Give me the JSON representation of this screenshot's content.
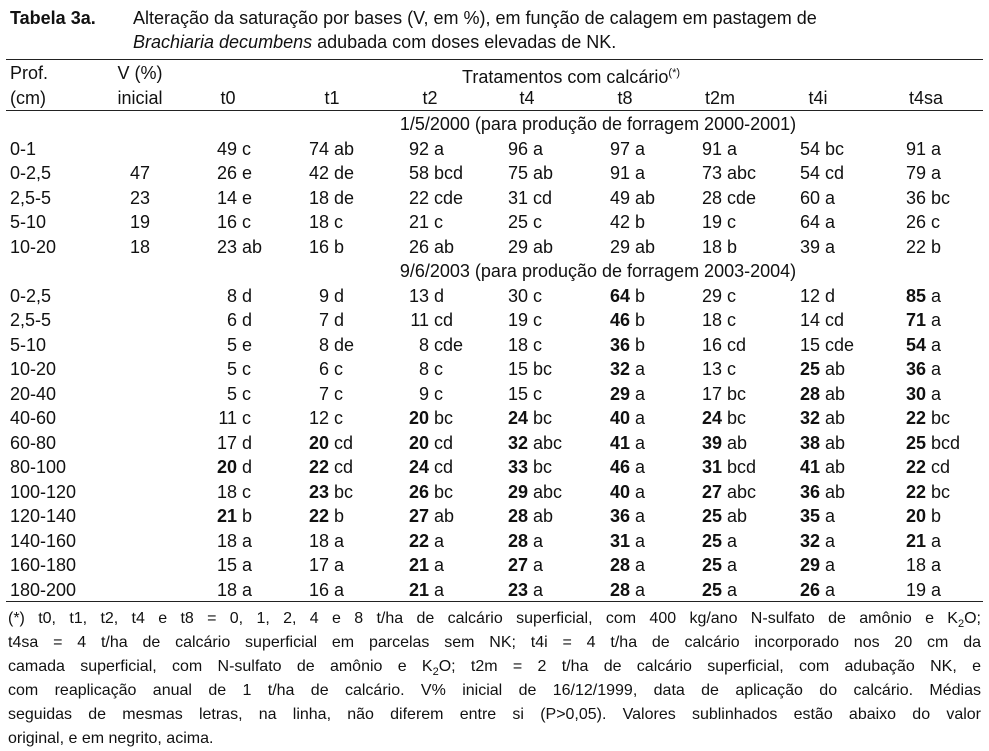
{
  "title": {
    "label": "Tabela 3a.",
    "line1": "Alteração da saturação por bases (V, em %), em função de calagem em pastagem de",
    "italic": "Brachiaria decumbens",
    "line2": " adubada com doses elevadas de NK."
  },
  "header": {
    "prof": [
      "Prof.",
      "(cm)"
    ],
    "v": [
      "V (%)",
      "inicial"
    ],
    "group": "Tratamentos com calcário",
    "group_note": "(*)",
    "treatments": [
      "t0",
      "t1",
      "t2",
      "t4",
      "t8",
      "t2m",
      "t4i",
      "t4sa"
    ]
  },
  "sections": [
    {
      "title": "1/5/2000 (para produção de forragem 2000-2001)",
      "rows": [
        {
          "prof": "0-1",
          "cells": [
            {
              "n": "49",
              "l": "c"
            },
            {
              "n": "74",
              "l": "ab"
            },
            {
              "n": "92",
              "l": "a"
            },
            {
              "n": "96",
              "l": "a"
            },
            {
              "n": "97",
              "l": "a"
            },
            {
              "n": "91",
              "l": "a"
            },
            {
              "n": "54",
              "l": "bc"
            },
            {
              "n": "91",
              "l": "a"
            }
          ]
        },
        {
          "prof": "0-2,5",
          "v": "47",
          "cells": [
            {
              "n": "26",
              "l": "e"
            },
            {
              "n": "42",
              "l": "de"
            },
            {
              "n": "58",
              "l": "bcd"
            },
            {
              "n": "75",
              "l": "ab"
            },
            {
              "n": "91",
              "l": "a"
            },
            {
              "n": "73",
              "l": "abc"
            },
            {
              "n": "54",
              "l": "cd"
            },
            {
              "n": "79",
              "l": "a"
            }
          ]
        },
        {
          "prof": "2,5-5",
          "v": "23",
          "cells": [
            {
              "n": "14",
              "l": "e"
            },
            {
              "n": "18",
              "l": "de"
            },
            {
              "n": "22",
              "l": "cde"
            },
            {
              "n": "31",
              "l": "cd"
            },
            {
              "n": "49",
              "l": "ab"
            },
            {
              "n": "28",
              "l": "cde"
            },
            {
              "n": "60",
              "l": "a"
            },
            {
              "n": "36",
              "l": "bc"
            }
          ]
        },
        {
          "prof": "5-10",
          "v": "19",
          "cells": [
            {
              "n": "16",
              "l": "c"
            },
            {
              "n": "18",
              "l": "c"
            },
            {
              "n": "21",
              "l": "c"
            },
            {
              "n": "25",
              "l": "c"
            },
            {
              "n": "42",
              "l": "b"
            },
            {
              "n": "19",
              "l": "c"
            },
            {
              "n": "64",
              "l": "a"
            },
            {
              "n": "26",
              "l": "c"
            }
          ]
        },
        {
          "prof": "10-20",
          "v": "18",
          "cells": [
            {
              "n": "23",
              "l": "ab"
            },
            {
              "n": "16",
              "l": "b"
            },
            {
              "n": "26",
              "l": "ab"
            },
            {
              "n": "29",
              "l": "ab"
            },
            {
              "n": "29",
              "l": "ab"
            },
            {
              "n": "18",
              "l": "b"
            },
            {
              "n": "39",
              "l": "a"
            },
            {
              "n": "22",
              "l": "b"
            }
          ]
        }
      ]
    },
    {
      "title": "9/6/2003 (para produção de forragem 2003-2004)",
      "rows": [
        {
          "prof": "0-2,5",
          "cells": [
            {
              "n": "8",
              "l": "d"
            },
            {
              "n": "9",
              "l": "d"
            },
            {
              "n": "13",
              "l": "d"
            },
            {
              "n": "30",
              "l": "c"
            },
            {
              "n": "64",
              "l": "b",
              "bold": true
            },
            {
              "n": "29",
              "l": "c"
            },
            {
              "n": "12",
              "l": "d"
            },
            {
              "n": "85",
              "l": "a",
              "bold": true
            }
          ]
        },
        {
          "prof": "2,5-5",
          "cells": [
            {
              "n": "6",
              "l": "d"
            },
            {
              "n": "7",
              "l": "d"
            },
            {
              "n": "11",
              "l": "cd"
            },
            {
              "n": "19",
              "l": "c"
            },
            {
              "n": "46",
              "l": "b",
              "bold": true
            },
            {
              "n": "18",
              "l": "c"
            },
            {
              "n": "14",
              "l": "cd"
            },
            {
              "n": "71",
              "l": "a",
              "bold": true
            }
          ]
        },
        {
          "prof": "5-10",
          "cells": [
            {
              "n": "5",
              "l": "e"
            },
            {
              "n": "8",
              "l": "de"
            },
            {
              "n": "8",
              "l": "cde"
            },
            {
              "n": "18",
              "l": "c"
            },
            {
              "n": "36",
              "l": "b",
              "bold": true
            },
            {
              "n": "16",
              "l": "cd"
            },
            {
              "n": "15",
              "l": "cde"
            },
            {
              "n": "54",
              "l": "a",
              "bold": true
            }
          ]
        },
        {
          "prof": "10-20",
          "cells": [
            {
              "n": "5",
              "l": "c"
            },
            {
              "n": "6",
              "l": "c"
            },
            {
              "n": "8",
              "l": "c"
            },
            {
              "n": "15",
              "l": "bc"
            },
            {
              "n": "32",
              "l": "a",
              "bold": true
            },
            {
              "n": "13",
              "l": "c"
            },
            {
              "n": "25",
              "l": "ab",
              "bold": true
            },
            {
              "n": "36",
              "l": "a",
              "bold": true
            }
          ]
        },
        {
          "prof": "20-40",
          "cells": [
            {
              "n": "5",
              "l": "c"
            },
            {
              "n": "7",
              "l": "c"
            },
            {
              "n": "9",
              "l": "c"
            },
            {
              "n": "15",
              "l": "c"
            },
            {
              "n": "29",
              "l": "a",
              "bold": true
            },
            {
              "n": "17",
              "l": "bc"
            },
            {
              "n": "28",
              "l": "ab",
              "bold": true
            },
            {
              "n": "30",
              "l": "a",
              "bold": true
            }
          ]
        },
        {
          "prof": "40-60",
          "cells": [
            {
              "n": "11",
              "l": "c"
            },
            {
              "n": "12",
              "l": "c"
            },
            {
              "n": "20",
              "l": "bc",
              "bold": true
            },
            {
              "n": "24",
              "l": "bc",
              "bold": true
            },
            {
              "n": "40",
              "l": "a",
              "bold": true
            },
            {
              "n": "24",
              "l": "bc",
              "bold": true
            },
            {
              "n": "32",
              "l": "ab",
              "bold": true
            },
            {
              "n": "22",
              "l": "bc",
              "bold": true
            }
          ]
        },
        {
          "prof": "60-80",
          "cells": [
            {
              "n": "17",
              "l": "d"
            },
            {
              "n": "20",
              "l": "cd",
              "bold": true
            },
            {
              "n": "20",
              "l": "cd",
              "bold": true
            },
            {
              "n": "32",
              "l": "abc",
              "bold": true
            },
            {
              "n": "41",
              "l": "a",
              "bold": true
            },
            {
              "n": "39",
              "l": "ab",
              "bold": true
            },
            {
              "n": "38",
              "l": "ab",
              "bold": true
            },
            {
              "n": "25",
              "l": "bcd",
              "bold": true
            }
          ]
        },
        {
          "prof": "80-100",
          "cells": [
            {
              "n": "20",
              "l": "d",
              "bold": true
            },
            {
              "n": "22",
              "l": "cd",
              "bold": true
            },
            {
              "n": "24",
              "l": "cd",
              "bold": true
            },
            {
              "n": "33",
              "l": "bc",
              "bold": true
            },
            {
              "n": "46",
              "l": "a",
              "bold": true
            },
            {
              "n": "31",
              "l": "bcd",
              "bold": true
            },
            {
              "n": "41",
              "l": "ab",
              "bold": true
            },
            {
              "n": "22",
              "l": "cd",
              "bold": true
            }
          ]
        },
        {
          "prof": "100-120",
          "cells": [
            {
              "n": "18",
              "l": "c"
            },
            {
              "n": "23",
              "l": "bc",
              "bold": true
            },
            {
              "n": "26",
              "l": "bc",
              "bold": true
            },
            {
              "n": "29",
              "l": "abc",
              "bold": true
            },
            {
              "n": "40",
              "l": "a",
              "bold": true
            },
            {
              "n": "27",
              "l": "abc",
              "bold": true
            },
            {
              "n": "36",
              "l": "ab",
              "bold": true
            },
            {
              "n": "22",
              "l": "bc",
              "bold": true
            }
          ]
        },
        {
          "prof": "120-140",
          "cells": [
            {
              "n": "21",
              "l": "b",
              "bold": true
            },
            {
              "n": "22",
              "l": "b",
              "bold": true
            },
            {
              "n": "27",
              "l": "ab",
              "bold": true
            },
            {
              "n": "28",
              "l": "ab",
              "bold": true
            },
            {
              "n": "36",
              "l": "a",
              "bold": true
            },
            {
              "n": "25",
              "l": "ab",
              "bold": true
            },
            {
              "n": "35",
              "l": "a",
              "bold": true
            },
            {
              "n": "20",
              "l": "b",
              "bold": true
            }
          ]
        },
        {
          "prof": "140-160",
          "cells": [
            {
              "n": "18",
              "l": "a"
            },
            {
              "n": "18",
              "l": "a"
            },
            {
              "n": "22",
              "l": "a",
              "bold": true
            },
            {
              "n": "28",
              "l": "a",
              "bold": true
            },
            {
              "n": "31",
              "l": "a",
              "bold": true
            },
            {
              "n": "25",
              "l": "a",
              "bold": true
            },
            {
              "n": "32",
              "l": "a",
              "bold": true
            },
            {
              "n": "21",
              "l": "a",
              "bold": true
            }
          ]
        },
        {
          "prof": "160-180",
          "cells": [
            {
              "n": "15",
              "l": "a"
            },
            {
              "n": "17",
              "l": "a"
            },
            {
              "n": "21",
              "l": "a",
              "bold": true
            },
            {
              "n": "27",
              "l": "a",
              "bold": true
            },
            {
              "n": "28",
              "l": "a",
              "bold": true
            },
            {
              "n": "25",
              "l": "a",
              "bold": true
            },
            {
              "n": "29",
              "l": "a",
              "bold": true
            },
            {
              "n": "18",
              "l": "a"
            }
          ]
        },
        {
          "prof": "180-200",
          "cells": [
            {
              "n": "18",
              "l": "a"
            },
            {
              "n": "16",
              "l": "a"
            },
            {
              "n": "21",
              "l": "a",
              "bold": true
            },
            {
              "n": "23",
              "l": "a",
              "bold": true
            },
            {
              "n": "28",
              "l": "a",
              "bold": true
            },
            {
              "n": "25",
              "l": "a",
              "bold": true
            },
            {
              "n": "26",
              "l": "a",
              "bold": true
            },
            {
              "n": "19",
              "l": "a"
            }
          ]
        }
      ]
    }
  ],
  "footnote": [
    [
      "(*) t0, t1, t2, t4 e t8 = 0, 1, 2, 4 e 8 t/ha de calcário superficial, com 400 kg/ano N-sulfato de amônio e K",
      {
        "sub": "2"
      },
      "O;"
    ],
    [
      "t4sa = 4 t/ha de calcário superficial em parcelas sem NK; t4i = 4 t/ha de calcário incorporado nos 20 cm da"
    ],
    [
      "camada superficial, com N-sulfato de amônio e K",
      {
        "sub": "2"
      },
      "O; t2m = 2 t/ha de calcário superficial, com adubação NK, e"
    ],
    [
      "com reaplicação anual de 1 t/ha de calcário. V% inicial de 16/12/1999, data de aplicação do calcário. Médias"
    ],
    [
      "seguidas de mesmas letras, na linha, não diferem entre si (P>0,05). Valores sublinhados estão abaixo do valor"
    ],
    [
      "original, e em negrito, acima."
    ]
  ]
}
